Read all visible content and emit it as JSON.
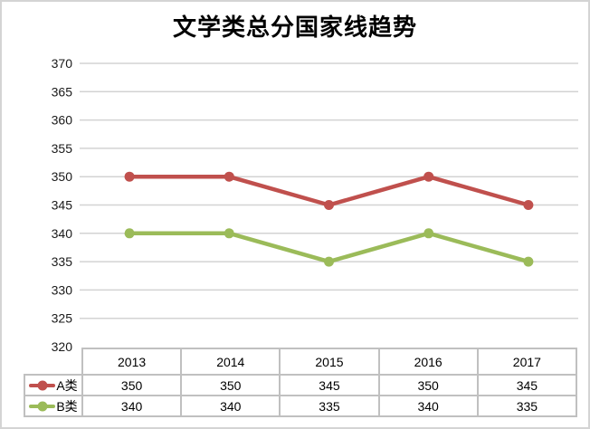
{
  "title": "文学类总分国家线趋势",
  "chart_data": {
    "type": "line",
    "title": "文学类总分国家线趋势",
    "categories": [
      "2013",
      "2014",
      "2015",
      "2016",
      "2017"
    ],
    "series": [
      {
        "name": "A类",
        "values": [
          350,
          350,
          345,
          350,
          345
        ],
        "color": "#C0504D"
      },
      {
        "name": "B类",
        "values": [
          340,
          340,
          335,
          340,
          335
        ],
        "color": "#9BBB59"
      }
    ],
    "ylim": [
      320,
      370
    ],
    "yticks": [
      370,
      365,
      360,
      355,
      350,
      345,
      340,
      335,
      330,
      325,
      320
    ],
    "ytick_step": 5,
    "grid": "horizontal-only",
    "legend_position": "data-table-left",
    "marker": "circle",
    "gridline_color": "#D3D3D3",
    "table_border_color": "#C0C0C0",
    "frame_border_color": "#D4D4D4",
    "text_color": "#1a1a1a"
  }
}
